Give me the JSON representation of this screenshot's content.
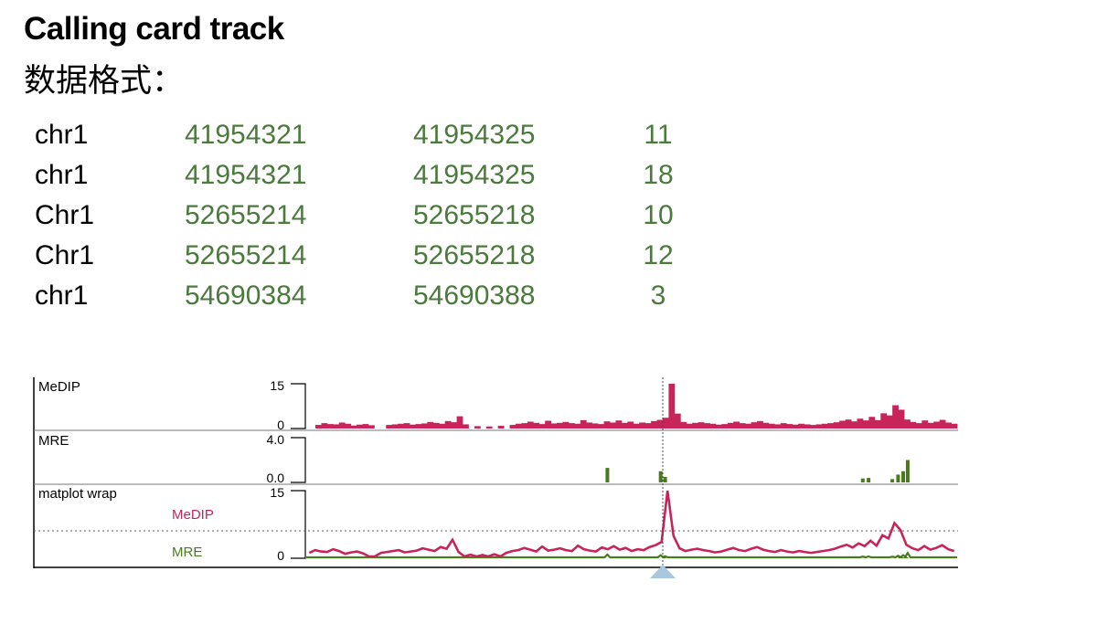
{
  "header": {
    "title": "Calling card track",
    "subtitle": "数据格式："
  },
  "data_rows": [
    {
      "chrom": "chr1",
      "start": "41954321",
      "end": "41954325",
      "count": "11"
    },
    {
      "chrom": "chr1",
      "start": "41954321",
      "end": "41954325",
      "count": "18"
    },
    {
      "chrom": "Chr1",
      "start": "52655214",
      "end": "52655218",
      "count": "10"
    },
    {
      "chrom": "Chr1",
      "start": "52655214",
      "end": "52655218",
      "count": "12"
    },
    {
      "chrom": "chr1",
      "start": "54690384",
      "end": "54690388",
      "count": "3"
    }
  ],
  "tracks": {
    "medip": {
      "label": "MeDIP",
      "max_label": "15",
      "min_label": "0"
    },
    "mre": {
      "label": "MRE",
      "max_label": "4.0",
      "min_label": "0.0"
    },
    "matplot": {
      "label": "matplot wrap",
      "max_label": "15",
      "min_label": "0",
      "series_medip": "MeDIP",
      "series_mre": "MRE"
    }
  },
  "colors": {
    "medip": "#c8245a",
    "mre": "#4a7a1e",
    "data_number": "#4a7a3c",
    "cursor_triangle": "#a8c8e0"
  },
  "chart_data": {
    "type": "bar",
    "note_series": [
      {
        "name": "MeDIP",
        "ylim": [
          0,
          15
        ],
        "values": [
          1.2,
          1.8,
          1.5,
          1.4,
          2.0,
          1.6,
          1.0,
          1.3,
          1.5,
          1.1,
          0,
          0,
          1.2,
          1.4,
          1.6,
          1.8,
          1.3,
          1.5,
          1.7,
          2.2,
          1.9,
          1.6,
          2.5,
          2.1,
          4.1,
          1.4,
          0,
          0.8,
          0,
          0.7,
          0,
          0.9,
          0,
          1.2,
          1.6,
          1.8,
          2.3,
          1.9,
          1.5,
          2.6,
          1.7,
          1.9,
          2.2,
          1.8,
          1.6,
          2.8,
          2.0,
          1.7,
          1.5,
          2.4,
          2.0,
          2.7,
          1.9,
          2.3,
          1.6,
          2.0,
          1.8,
          2.5,
          2.9,
          3.6,
          15.0,
          5.0,
          2.2,
          1.6,
          1.9,
          2.1,
          1.8,
          1.6,
          1.3,
          1.5,
          1.9,
          2.3,
          1.8,
          1.6,
          2.1,
          2.5,
          1.9,
          1.6,
          1.4,
          1.8,
          1.5,
          1.3,
          1.6,
          1.4,
          1.2,
          1.4,
          1.6,
          1.8,
          2.1,
          2.6,
          3.0,
          2.4,
          3.3,
          2.7,
          3.9,
          2.8,
          5.1,
          4.4,
          7.8,
          6.3,
          3.0,
          2.2,
          1.8,
          2.7,
          1.9,
          2.3,
          2.9,
          2.0,
          1.6
        ]
      },
      {
        "name": "MRE",
        "ylim": [
          0,
          4.0
        ],
        "points": [
          [
            0.455,
            1.3
          ],
          [
            0.538,
            1.0
          ],
          [
            0.545,
            0.5
          ],
          [
            0.853,
            0.35
          ],
          [
            0.862,
            0.4
          ],
          [
            0.899,
            0.3
          ],
          [
            0.908,
            0.7
          ],
          [
            0.916,
            1.0
          ],
          [
            0.923,
            2.0
          ]
        ]
      }
    ]
  }
}
